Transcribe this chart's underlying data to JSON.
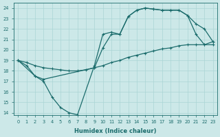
{
  "xlabel": "Humidex (Indice chaleur)",
  "bg_color": "#cce8e8",
  "line_color": "#1a6b6b",
  "grid_color": "#aad4d4",
  "xlim": [
    -0.5,
    23.5
  ],
  "ylim": [
    13.8,
    24.5
  ],
  "yticks": [
    14,
    15,
    16,
    17,
    18,
    19,
    20,
    21,
    22,
    23,
    24
  ],
  "xticks": [
    0,
    1,
    2,
    3,
    4,
    5,
    6,
    7,
    8,
    9,
    10,
    11,
    12,
    13,
    14,
    15,
    16,
    17,
    18,
    19,
    20,
    21,
    22,
    23
  ],
  "line_zigzag_x": [
    0,
    1,
    2,
    3,
    4,
    5,
    6,
    7,
    9,
    10,
    11,
    12,
    13,
    14,
    15,
    16,
    17,
    18,
    19,
    20,
    21,
    22,
    23
  ],
  "line_zigzag_y": [
    19.0,
    18.5,
    17.5,
    17.0,
    15.5,
    14.5,
    14.0,
    13.8,
    18.5,
    21.5,
    21.7,
    21.5,
    23.2,
    23.8,
    24.0,
    23.9,
    23.8,
    23.8,
    23.8,
    23.3,
    22.5,
    22.0,
    20.8
  ],
  "line_upper_x": [
    0,
    2,
    3,
    9,
    10,
    11,
    12,
    13,
    14,
    15,
    16,
    17,
    18,
    19,
    20,
    21,
    22,
    23
  ],
  "line_upper_y": [
    19.0,
    17.5,
    17.2,
    18.3,
    20.2,
    21.5,
    21.5,
    23.2,
    23.8,
    24.0,
    23.9,
    23.8,
    23.8,
    23.8,
    23.3,
    21.5,
    20.5,
    20.8
  ],
  "line_flat_x": [
    0,
    1,
    2,
    3,
    4,
    5,
    6,
    7,
    8,
    9,
    10,
    11,
    12,
    13,
    14,
    15,
    16,
    17,
    18,
    19,
    20,
    21,
    22,
    23
  ],
  "line_flat_y": [
    19.0,
    18.8,
    18.5,
    18.3,
    18.2,
    18.1,
    18.0,
    18.0,
    18.1,
    18.3,
    18.5,
    18.8,
    19.0,
    19.3,
    19.5,
    19.7,
    19.9,
    20.1,
    20.2,
    20.4,
    20.5,
    20.5,
    20.5,
    20.5
  ]
}
